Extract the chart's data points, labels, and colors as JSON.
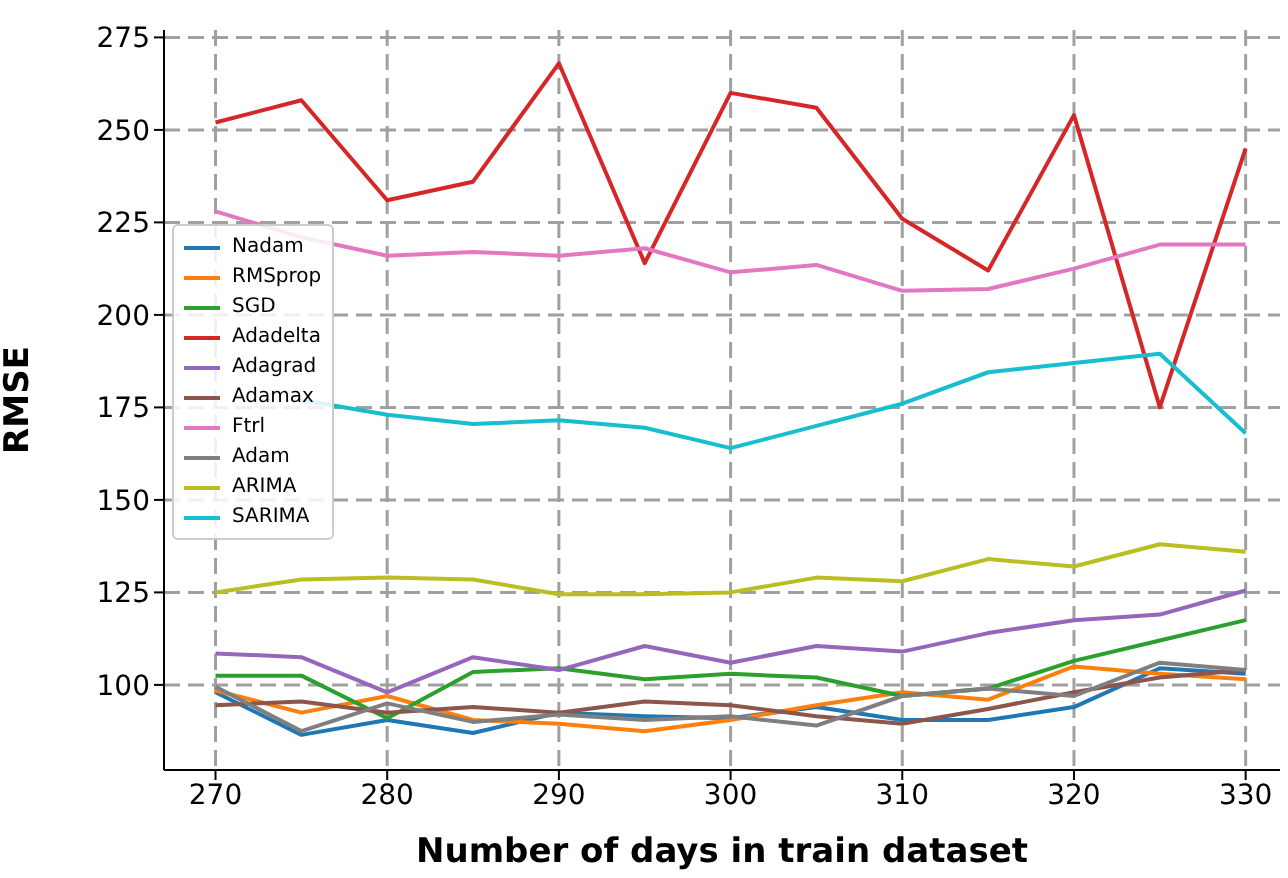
{
  "chart_data": {
    "type": "line",
    "xlabel": "Number of days in train dataset",
    "ylabel": "RMSE",
    "x": [
      270,
      275,
      280,
      285,
      290,
      295,
      300,
      305,
      310,
      315,
      320,
      325,
      330
    ],
    "xlim": [
      267,
      332
    ],
    "xticks": [
      270,
      280,
      290,
      300,
      310,
      320,
      330
    ],
    "ylim": [
      77,
      277
    ],
    "yticks": [
      100,
      125,
      150,
      175,
      200,
      225,
      250,
      275
    ],
    "grid": true,
    "legend": "center left",
    "series": [
      {
        "name": "Nadam",
        "color": "#1f77b4",
        "values": [
          98,
          86.5,
          90.5,
          87,
          92.5,
          91.5,
          91,
          94,
          90.5,
          90.5,
          94,
          104.5,
          103
        ]
      },
      {
        "name": "RMSprop",
        "color": "#ff7f0e",
        "values": [
          98.5,
          92.5,
          97,
          90.5,
          89.5,
          87.5,
          90.5,
          94.5,
          98,
          96,
          105,
          103,
          101.5
        ]
      },
      {
        "name": "SGD",
        "color": "#2ca02c",
        "values": [
          102.5,
          102.5,
          91,
          103.5,
          104.5,
          101.5,
          103,
          102,
          97,
          99,
          106.5,
          112,
          117.5
        ]
      },
      {
        "name": "Adadelta",
        "color": "#d62728",
        "values": [
          252,
          258,
          231,
          236,
          268,
          214,
          260,
          256,
          226,
          212,
          254,
          175,
          245
        ]
      },
      {
        "name": "Adagrad",
        "color": "#9467bd",
        "values": [
          108.5,
          107.5,
          98,
          107.5,
          104,
          110.5,
          106,
          110.5,
          109,
          114,
          117.5,
          119,
          125.5
        ]
      },
      {
        "name": "Adamax",
        "color": "#8c564b",
        "values": [
          94.5,
          95.5,
          92.5,
          94,
          92.5,
          95.5,
          94.5,
          91.5,
          89.5,
          93.5,
          98,
          102,
          104
        ]
      },
      {
        "name": "Ftrl",
        "color": "#e377c2",
        "values": [
          228,
          221,
          216,
          217,
          216,
          218,
          211.5,
          213.5,
          206.5,
          207,
          212.5,
          219,
          219
        ]
      },
      {
        "name": "Adam",
        "color": "#7f7f7f",
        "values": [
          99.5,
          87.5,
          95,
          90,
          92,
          90.5,
          91.5,
          89,
          97,
          99,
          97,
          106,
          104
        ]
      },
      {
        "name": "ARIMA",
        "color": "#bcbd22",
        "values": [
          125,
          128.5,
          129,
          128.5,
          124.5,
          124.5,
          125,
          129,
          128,
          134,
          132,
          138,
          136
        ]
      },
      {
        "name": "SARIMA",
        "color": "#17becf",
        "values": [
          null,
          177,
          173,
          170.5,
          171.5,
          169.5,
          164,
          170,
          176,
          184.5,
          187,
          189.5,
          168
        ]
      }
    ]
  }
}
